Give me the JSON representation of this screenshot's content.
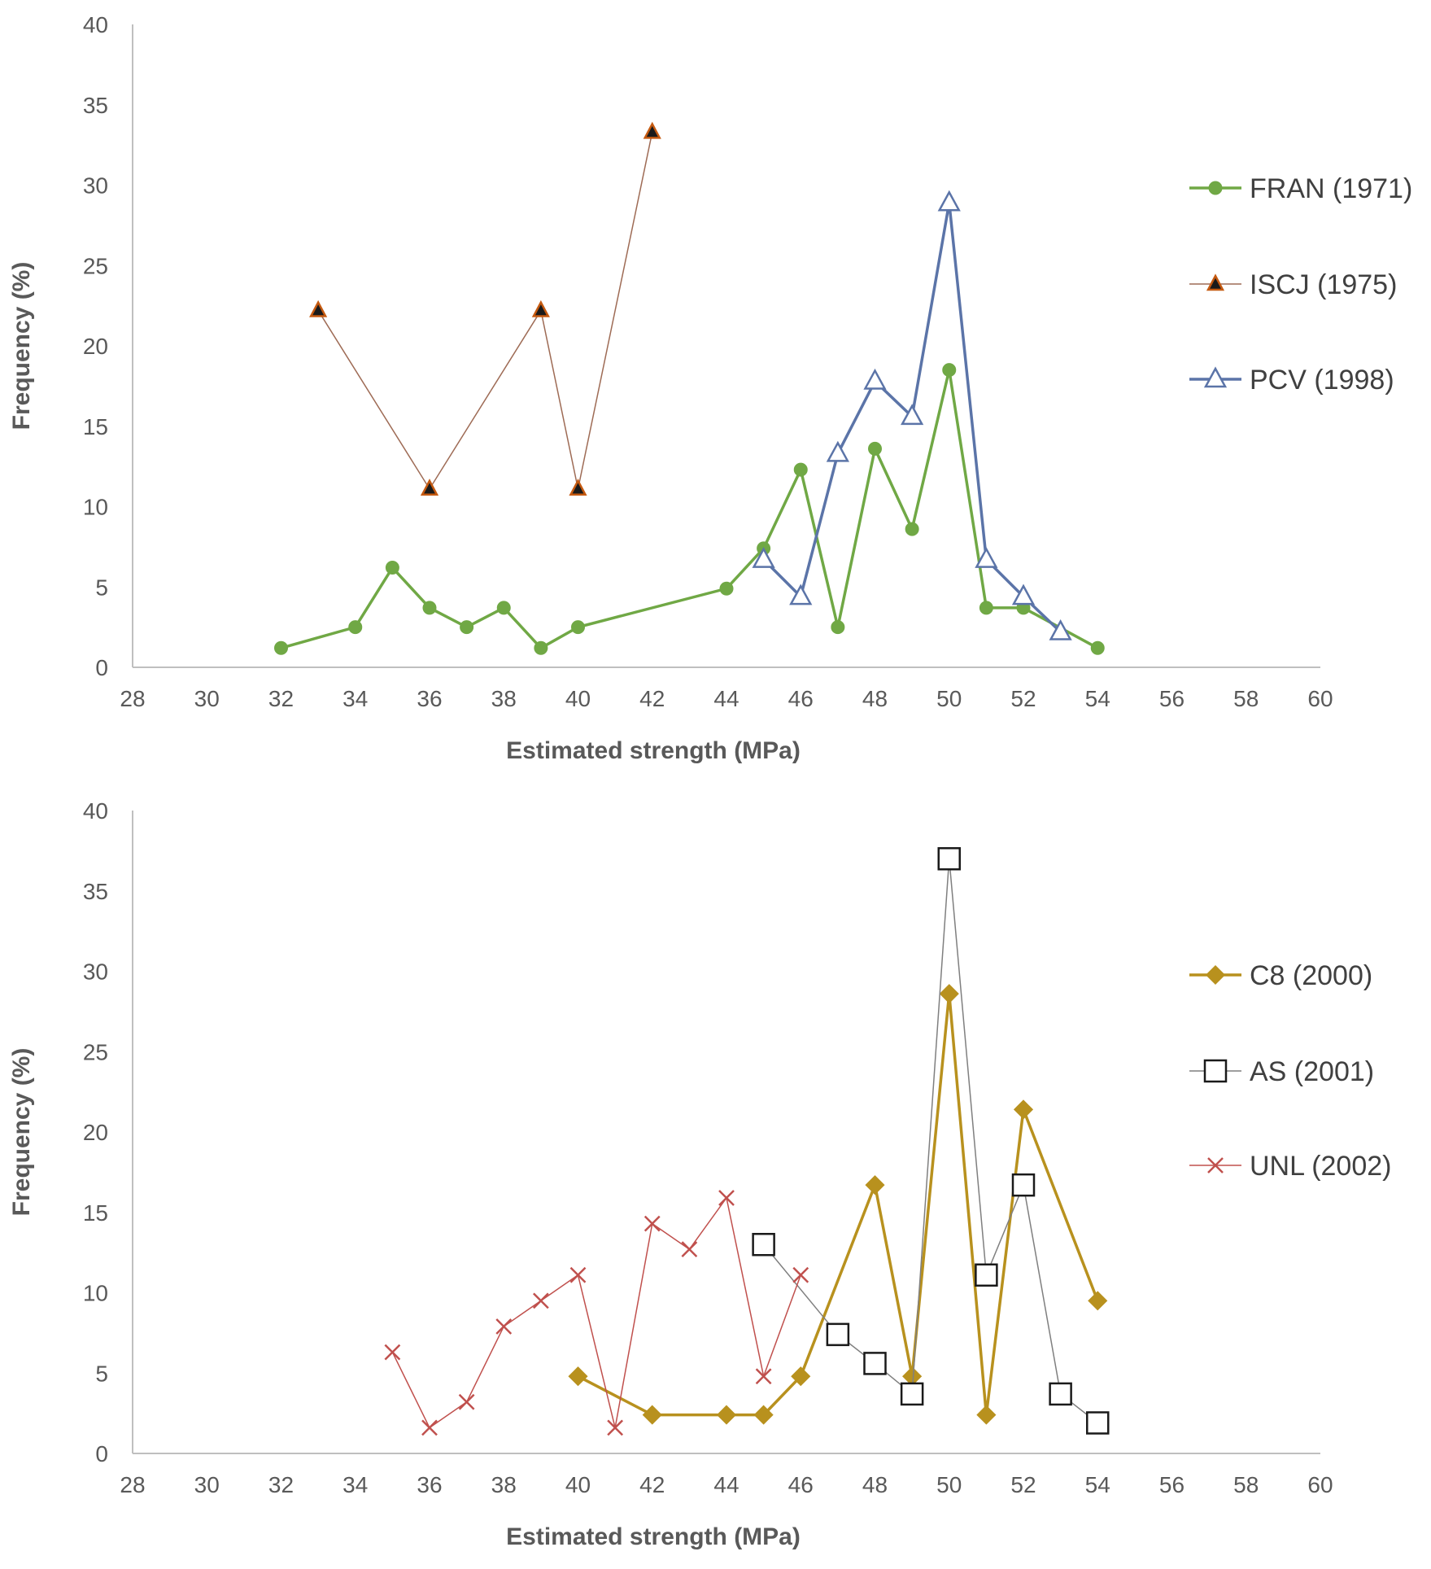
{
  "chart_data": [
    {
      "type": "line",
      "xlabel": "Estimated strength (MPa)",
      "ylabel": "Frequency (%)",
      "xlim": [
        28,
        60
      ],
      "ylim": [
        0,
        40
      ],
      "x_ticks": [
        "28",
        "30",
        "32",
        "34",
        "36",
        "38",
        "40",
        "42",
        "44",
        "46",
        "48",
        "50",
        "52",
        "54",
        "56",
        "58",
        "60"
      ],
      "y_ticks": [
        "0",
        "5",
        "10",
        "15",
        "20",
        "25",
        "30",
        "35",
        "40"
      ],
      "legend_position": "right",
      "series": [
        {
          "name": "FRAN (1971)",
          "color": "#70a845",
          "marker": "circle",
          "x": [
            32,
            34,
            35,
            36,
            37,
            38,
            39,
            40,
            44,
            45,
            46,
            47,
            48,
            49,
            50,
            51,
            52,
            54
          ],
          "y": [
            1.2,
            2.5,
            6.2,
            3.7,
            2.5,
            3.7,
            1.2,
            2.5,
            4.9,
            7.4,
            12.3,
            2.5,
            13.6,
            8.6,
            18.5,
            3.7,
            3.7,
            1.2
          ]
        },
        {
          "name": "ISCJ (1975)",
          "color": "#9e6b55",
          "marker": "triangle-filled",
          "x": [
            33,
            36,
            39,
            40,
            42
          ],
          "y": [
            22.2,
            11.1,
            22.2,
            11.1,
            33.3
          ]
        },
        {
          "name": "PCV (1998)",
          "color": "#5b74a8",
          "marker": "triangle-open",
          "x": [
            45,
            46,
            47,
            48,
            49,
            50,
            51,
            52,
            53
          ],
          "y": [
            6.7,
            4.4,
            13.3,
            17.8,
            15.6,
            28.9,
            6.7,
            4.4,
            2.2
          ]
        }
      ]
    },
    {
      "type": "line",
      "xlabel": "Estimated strength (MPa)",
      "ylabel": "Frequency (%)",
      "xlim": [
        28,
        60
      ],
      "ylim": [
        0,
        40
      ],
      "x_ticks": [
        "28",
        "30",
        "32",
        "34",
        "36",
        "38",
        "40",
        "42",
        "44",
        "46",
        "48",
        "50",
        "52",
        "54",
        "56",
        "58",
        "60"
      ],
      "y_ticks": [
        "0",
        "5",
        "10",
        "15",
        "20",
        "25",
        "30",
        "35",
        "40"
      ],
      "legend_position": "right",
      "series": [
        {
          "name": "C8 (2000)",
          "color": "#b8911e",
          "marker": "diamond",
          "x": [
            40,
            42,
            44,
            45,
            46,
            48,
            49,
            50,
            51,
            52,
            54
          ],
          "y": [
            4.8,
            2.4,
            2.4,
            2.4,
            4.8,
            16.7,
            4.8,
            28.6,
            2.4,
            21.4,
            9.5
          ]
        },
        {
          "name": "AS (2001)",
          "color": "#7f7f7f",
          "marker": "square-open",
          "x": [
            45,
            47,
            48,
            49,
            50,
            51,
            52,
            53,
            54
          ],
          "y": [
            13.0,
            7.4,
            5.6,
            3.7,
            37.0,
            11.1,
            16.7,
            3.7,
            1.9
          ]
        },
        {
          "name": "UNL (2002)",
          "color": "#c0504d",
          "marker": "x",
          "x": [
            35,
            36,
            37,
            38,
            39,
            40,
            41,
            42,
            43,
            44,
            45,
            46
          ],
          "y": [
            6.3,
            1.6,
            3.2,
            7.9,
            9.5,
            11.1,
            1.6,
            14.3,
            12.7,
            15.9,
            4.8,
            11.1
          ]
        }
      ]
    }
  ]
}
